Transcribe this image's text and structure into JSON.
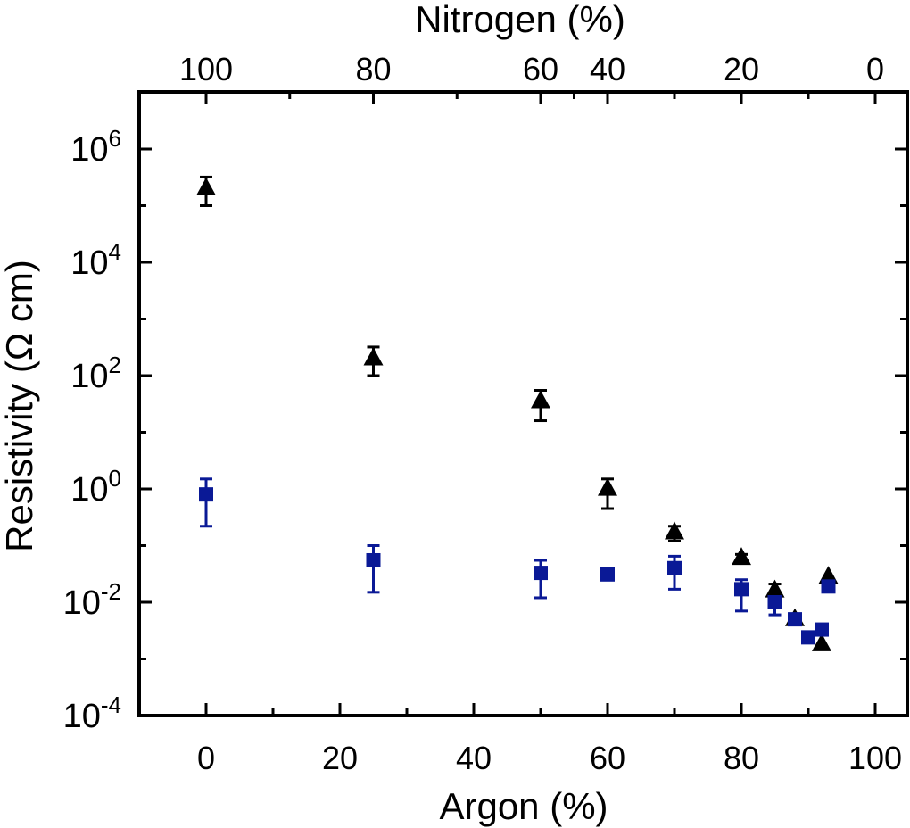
{
  "chart_data": {
    "type": "scatter",
    "title": "",
    "xlabel": "Argon (%)",
    "x2label": "Nitrogen (%)",
    "ylabel": "Resistivity (Ω cm)",
    "xlim": [
      -10,
      105
    ],
    "ylim_log10": [
      -4,
      7
    ],
    "yscale": "log",
    "grid": false,
    "legend": "none",
    "x_ticks": [
      "0",
      "20",
      "40",
      "60",
      "80",
      "100"
    ],
    "x_tick_values": [
      0,
      20,
      40,
      60,
      80,
      100
    ],
    "x2_ticks": [
      "100",
      "80",
      "60",
      "40",
      "20",
      "0"
    ],
    "x2_tick_values": [
      0,
      25,
      50,
      60,
      80,
      100
    ],
    "y_ticks": [
      {
        "exponent": "6",
        "value": 1000000
      },
      {
        "exponent": "4",
        "value": 10000
      },
      {
        "exponent": "2",
        "value": 100
      },
      {
        "exponent": "0",
        "value": 1
      },
      {
        "exponent": "-2",
        "value": 0.01
      },
      {
        "exponent": "-4",
        "value": 0.0001
      }
    ],
    "y_tick_base": "10",
    "series": [
      {
        "marker": "triangle",
        "color": "#000000",
        "points": [
          {
            "x": 0,
            "y": 200000,
            "lo": 100000,
            "hi": 320000
          },
          {
            "x": 25,
            "y": 200,
            "lo": 100,
            "hi": 320
          },
          {
            "x": 50,
            "y": 35,
            "lo": 16,
            "hi": 55
          },
          {
            "x": 60,
            "y": 1.0,
            "lo": 0.45,
            "hi": 1.5
          },
          {
            "x": 70,
            "y": 0.17,
            "lo": 0.12,
            "hi": 0.22
          },
          {
            "x": 80,
            "y": 0.06,
            "lo": 0.05,
            "hi": 0.07
          },
          {
            "x": 85,
            "y": 0.016,
            "lo": 0.011,
            "hi": 0.021
          },
          {
            "x": 88,
            "y": 0.005,
            "lo": 0.004,
            "hi": 0.006
          },
          {
            "x": 92,
            "y": 0.0018
          },
          {
            "x": 93,
            "y": 0.028
          }
        ]
      },
      {
        "marker": "square",
        "color": "#0a1996",
        "points": [
          {
            "x": 0,
            "y": 0.8,
            "lo": 0.22,
            "hi": 1.5
          },
          {
            "x": 25,
            "y": 0.055,
            "lo": 0.015,
            "hi": 0.1
          },
          {
            "x": 50,
            "y": 0.033,
            "lo": 0.012,
            "hi": 0.055
          },
          {
            "x": 60,
            "y": 0.031
          },
          {
            "x": 70,
            "y": 0.04,
            "lo": 0.017,
            "hi": 0.065
          },
          {
            "x": 80,
            "y": 0.017,
            "lo": 0.007,
            "hi": 0.025
          },
          {
            "x": 85,
            "y": 0.01,
            "lo": 0.006,
            "hi": 0.015
          },
          {
            "x": 88,
            "y": 0.005
          },
          {
            "x": 90,
            "y": 0.0024
          },
          {
            "x": 92,
            "y": 0.0033
          },
          {
            "x": 93,
            "y": 0.019
          }
        ]
      }
    ]
  }
}
